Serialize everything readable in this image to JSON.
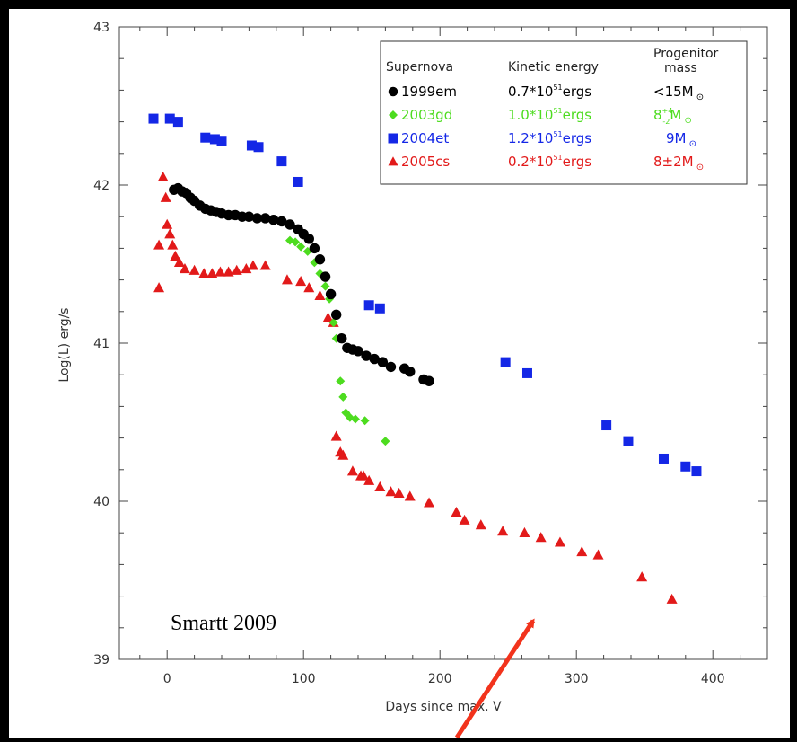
{
  "chart_data": {
    "type": "scatter",
    "title": "",
    "xlabel": "Days since max. V",
    "ylabel": "Log(L) erg/s",
    "xlim": [
      -35,
      440
    ],
    "ylim": [
      39,
      43
    ],
    "x_ticks": [
      "0",
      "100",
      "200",
      "300",
      "400"
    ],
    "y_ticks": [
      "39",
      "40",
      "41",
      "42",
      "43"
    ],
    "grid": false,
    "legend_position": "top-right",
    "legend": {
      "headers": {
        "name": "Supernova",
        "energy": "Kinetic energy",
        "mass_line1": "Progenitor",
        "mass_line2": "mass"
      },
      "rows": [
        {
          "name": "1999em",
          "energy_base": "0.7*10",
          "energy_exp": "51",
          "energy_unit": "ergs",
          "mass_prefix": "<15M",
          "mass_plus": "",
          "mass_minus": "",
          "mass_suffix": "",
          "color": "#000000",
          "marker": "circle"
        },
        {
          "name": "2003gd",
          "energy_base": "1.0*10",
          "energy_exp": "51",
          "energy_unit": "ergs",
          "mass_prefix": "8",
          "mass_plus": "+4",
          "mass_minus": "-2",
          "mass_suffix": "M",
          "color": "#4ddc1f",
          "marker": "diamond"
        },
        {
          "name": "2004et",
          "energy_base": "1.2*10",
          "energy_exp": "51",
          "energy_unit": "ergs",
          "mass_prefix": "9M",
          "mass_plus": "",
          "mass_minus": "",
          "mass_suffix": "",
          "color": "#1427e6",
          "marker": "square"
        },
        {
          "name": "2005cs",
          "energy_base": "0.2*10",
          "energy_exp": "51",
          "energy_unit": "ergs",
          "mass_prefix": "8±2M",
          "mass_plus": "",
          "mass_minus": "",
          "mass_suffix": "",
          "color": "#e21a1a",
          "marker": "triangle"
        }
      ]
    },
    "annotation": "Smartt 2009",
    "series": [
      {
        "name": "1999em",
        "color": "#000000",
        "marker": "circle",
        "x": [
          5,
          8,
          11,
          14,
          17,
          20,
          24,
          28,
          32,
          36,
          40,
          45,
          50,
          55,
          60,
          66,
          72,
          78,
          84,
          90,
          96,
          100,
          104,
          108,
          112,
          116,
          120,
          124,
          128,
          132,
          136,
          140,
          146,
          152,
          158,
          164,
          174,
          178,
          188,
          192
        ],
        "y": [
          41.97,
          41.98,
          41.96,
          41.95,
          41.92,
          41.9,
          41.87,
          41.85,
          41.84,
          41.83,
          41.82,
          41.81,
          41.81,
          41.8,
          41.8,
          41.79,
          41.79,
          41.78,
          41.77,
          41.75,
          41.72,
          41.69,
          41.66,
          41.6,
          41.53,
          41.42,
          41.31,
          41.18,
          41.03,
          40.97,
          40.96,
          40.95,
          40.92,
          40.9,
          40.88,
          40.85,
          40.84,
          40.82,
          40.77,
          40.76
        ]
      },
      {
        "name": "2003gd",
        "color": "#4ddc1f",
        "marker": "diamond",
        "x": [
          90,
          94,
          98,
          103,
          108,
          112,
          116,
          119,
          122,
          124,
          127,
          129,
          131,
          134,
          138,
          145,
          160
        ],
        "y": [
          41.65,
          41.64,
          41.61,
          41.58,
          41.51,
          41.44,
          41.36,
          41.28,
          41.13,
          41.03,
          40.76,
          40.66,
          40.56,
          40.53,
          40.52,
          40.51,
          40.38
        ]
      },
      {
        "name": "2004et",
        "color": "#1427e6",
        "marker": "square",
        "x": [
          -10,
          2,
          8,
          28,
          35,
          40,
          62,
          67,
          84,
          96,
          148,
          156,
          248,
          264,
          322,
          338,
          364,
          380,
          388
        ],
        "y": [
          42.42,
          42.42,
          42.4,
          42.3,
          42.29,
          42.28,
          42.25,
          42.24,
          42.15,
          42.02,
          41.24,
          41.22,
          40.88,
          40.81,
          40.48,
          40.38,
          40.27,
          40.22,
          40.19
        ]
      },
      {
        "name": "2005cs",
        "color": "#e21a1a",
        "marker": "triangle",
        "x": [
          -6,
          -6,
          -3,
          -1,
          0,
          2,
          4,
          6,
          9,
          13,
          20,
          27,
          33,
          39,
          45,
          51,
          58,
          63,
          72,
          88,
          98,
          104,
          112,
          118,
          122,
          124,
          127,
          129,
          136,
          142,
          144,
          148,
          156,
          164,
          170,
          178,
          192,
          212,
          218,
          230,
          246,
          262,
          274,
          288,
          304,
          316,
          348,
          370
        ],
        "y": [
          41.35,
          41.62,
          42.05,
          41.92,
          41.75,
          41.69,
          41.62,
          41.55,
          41.51,
          41.47,
          41.46,
          41.44,
          41.44,
          41.45,
          41.45,
          41.46,
          41.47,
          41.49,
          41.49,
          41.4,
          41.39,
          41.35,
          41.3,
          41.16,
          41.13,
          40.41,
          40.31,
          40.29,
          40.19,
          40.16,
          40.16,
          40.13,
          40.09,
          40.06,
          40.05,
          40.03,
          39.99,
          39.93,
          39.88,
          39.85,
          39.81,
          39.8,
          39.77,
          39.74,
          39.68,
          39.66,
          39.52,
          39.38
        ]
      }
    ]
  }
}
